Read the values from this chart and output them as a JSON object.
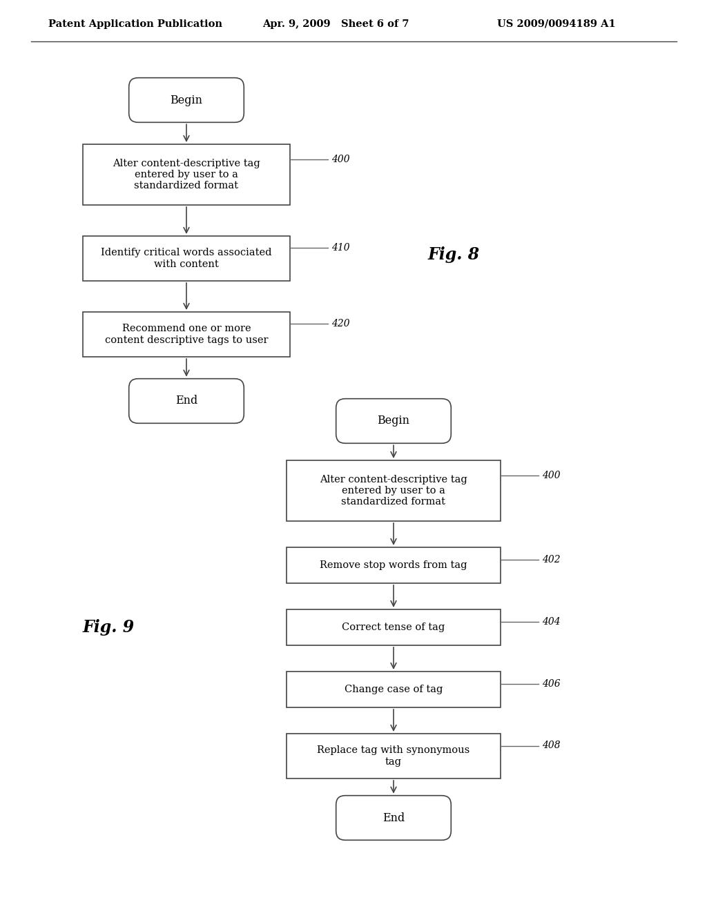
{
  "bg_color": "#ffffff",
  "header_left": "Patent Application Publication",
  "header_mid": "Apr. 9, 2009   Sheet 6 of 7",
  "header_right": "US 2009/0094189 A1",
  "fig8_label": "Fig. 8",
  "fig9_label": "Fig. 9",
  "line_color": "#444444",
  "text_color": "#000000",
  "box_edge_color": "#444444"
}
